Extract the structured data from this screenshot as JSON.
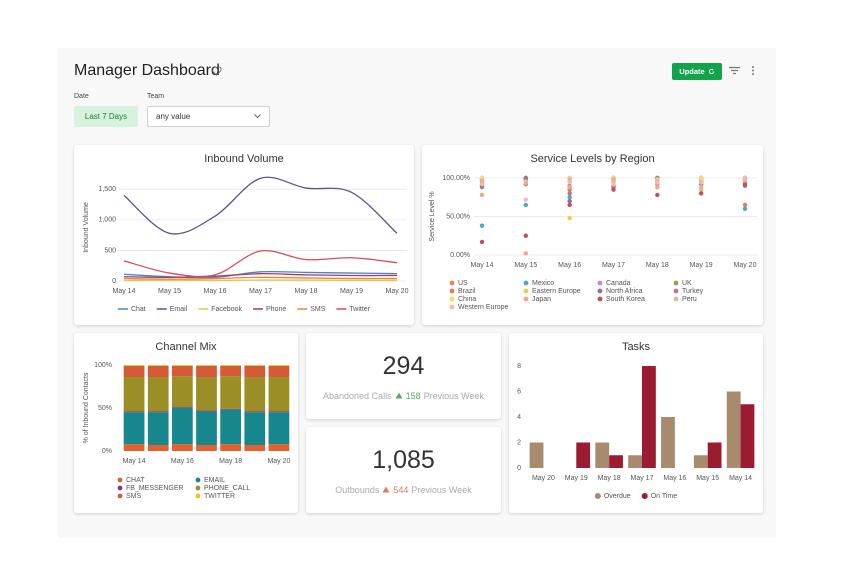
{
  "header": {
    "title": "Manager Dashboard",
    "update_button": "Update"
  },
  "filters": [
    {
      "label": "Date",
      "value": "Last 7 Days"
    },
    {
      "label": "Team",
      "value": "any value"
    }
  ],
  "chart_data": [
    {
      "type": "line",
      "title": "Inbound Volume",
      "y_label": "Inbound Volume",
      "categories": [
        "May 14",
        "May 15",
        "May 16",
        "May 17",
        "May 18",
        "May 19",
        "May 20"
      ],
      "ylim": [
        0,
        1750
      ],
      "yticks": [
        0,
        500,
        {
          "value": 1000,
          "label": "1,000"
        },
        {
          "value": 1500,
          "label": "1,500"
        }
      ],
      "grid": true,
      "series": [
        {
          "name": "Chat",
          "color": "#4a86c5",
          "values": [
            110,
            70,
            60,
            150,
            140,
            130,
            120
          ]
        },
        {
          "name": "Email",
          "color": "#5c5494",
          "values": [
            1400,
            780,
            1060,
            1680,
            1520,
            1450,
            780
          ]
        },
        {
          "name": "Facebook",
          "color": "#f0c244",
          "values": [
            10,
            10,
            10,
            15,
            15,
            10,
            10
          ]
        },
        {
          "name": "Phone",
          "color": "#a33b6b",
          "values": [
            70,
            60,
            80,
            120,
            100,
            90,
            90
          ]
        },
        {
          "name": "SMS",
          "color": "#e8893a",
          "values": [
            40,
            30,
            40,
            60,
            50,
            40,
            40
          ]
        },
        {
          "name": "Twitter",
          "color": "#d94a5e",
          "values": [
            330,
            130,
            100,
            490,
            350,
            380,
            300
          ]
        }
      ]
    },
    {
      "type": "scatter",
      "title": "Service Levels by Region",
      "y_label": "Service Level %",
      "categories": [
        "May 14",
        "May 15",
        "May 16",
        "May 17",
        "May 18",
        "May 19",
        "May 20"
      ],
      "ylim": [
        0,
        100
      ],
      "yticks": [
        {
          "value": 0,
          "label": "0.00%"
        },
        {
          "value": 50,
          "label": "50.00%"
        },
        {
          "value": 100,
          "label": "100.00%"
        }
      ],
      "grid": true,
      "series": [
        {
          "name": "US",
          "color": "#e8864c",
          "values": [
            100,
            100,
            95,
            100,
            100,
            100,
            100
          ]
        },
        {
          "name": "Mexico",
          "color": "#4aa8c8",
          "values": [
            38,
            65,
            75,
            100,
            100,
            100,
            60
          ]
        },
        {
          "name": "Canada",
          "color": "#c98bb9",
          "values": [
            98,
            97,
            90,
            95,
            98,
            98,
            95
          ]
        },
        {
          "name": "UK",
          "color": "#a09a4a",
          "values": [
            95,
            100,
            100,
            98,
            95,
            95,
            98
          ]
        },
        {
          "name": "Brazil",
          "color": "#e37c52",
          "values": [
            88,
            92,
            85,
            90,
            92,
            96,
            65
          ]
        },
        {
          "name": "Eastern Europe",
          "color": "#f3c94a",
          "values": [
            100,
            98,
            48,
            100,
            100,
            98,
            100
          ]
        },
        {
          "name": "North Africa",
          "color": "#8e6f9e",
          "values": [
            90,
            100,
            70,
            100,
            100,
            92,
            90
          ]
        },
        {
          "name": "Turkey",
          "color": "#b07a8a",
          "values": [
            98,
            98,
            80,
            88,
            100,
            100,
            100
          ]
        },
        {
          "name": "China",
          "color": "#f7d97a",
          "values": [
            100,
            95,
            100,
            100,
            98,
            100,
            95
          ]
        },
        {
          "name": "Japan",
          "color": "#f2a68a",
          "values": [
            78,
            2,
            88,
            98,
            88,
            85,
            100
          ]
        },
        {
          "name": "South Korea",
          "color": "#c44e5a",
          "values": [
            17,
            25,
            65,
            85,
            78,
            80,
            92
          ]
        },
        {
          "name": "Peru",
          "color": "#d9b89a",
          "values": [
            96,
            94,
            98,
            96,
            96,
            88,
            97
          ]
        },
        {
          "name": "Western Europe",
          "color": "#f0b8b8",
          "values": [
            92,
            72,
            95,
            92,
            94,
            94,
            100
          ]
        }
      ]
    },
    {
      "type": "stacked_bar",
      "title": "Channel Mix",
      "y_label": "% of Inbound Contacts",
      "categories": [
        "May 14",
        null,
        "May 16",
        null,
        "May 18",
        null,
        "May 20"
      ],
      "ylim": [
        0,
        100
      ],
      "yticks": [
        {
          "value": 0,
          "label": "0%"
        },
        {
          "value": 50,
          "label": "50%"
        },
        {
          "value": 100,
          "label": "100%"
        }
      ],
      "series": [
        {
          "name": "CHAT",
          "color": "#e0622f",
          "values": [
            8,
            7,
            8,
            7,
            8,
            7,
            8
          ]
        },
        {
          "name": "EMAIL",
          "color": "#17878e",
          "values": [
            37,
            38,
            42,
            39,
            40,
            38,
            37
          ]
        },
        {
          "name": "FB_MESSENGER",
          "color": "#7a3b8c",
          "values": [
            1,
            1,
            1,
            1,
            1,
            1,
            1
          ]
        },
        {
          "name": "PHONE_CALL",
          "color": "#9c8e26",
          "values": [
            40,
            40,
            36,
            39,
            38,
            40,
            40
          ]
        },
        {
          "name": "SMS",
          "color": "#d65a35",
          "values": [
            13,
            13,
            12,
            13,
            12,
            13,
            13
          ]
        },
        {
          "name": "TWITTER",
          "color": "#e9c22c",
          "values": [
            1,
            1,
            1,
            1,
            1,
            1,
            1
          ]
        }
      ]
    },
    {
      "type": "grouped_bar",
      "title": "Tasks",
      "categories": [
        "May 20",
        "May 19",
        "May 18",
        "May 17",
        "May 16",
        "May 15",
        "May 14"
      ],
      "ylim": [
        0,
        8
      ],
      "yticks": [
        0,
        2,
        4,
        6,
        8
      ],
      "series": [
        {
          "name": "Overdue",
          "color": "#a88b6f",
          "values": [
            2,
            0,
            2,
            1,
            4,
            1,
            6
          ]
        },
        {
          "name": "On Time",
          "color": "#9b1b30",
          "values": [
            0,
            2,
            1,
            8,
            0,
            2,
            5
          ]
        }
      ]
    }
  ],
  "kpis": [
    {
      "value": 294,
      "label": "Abandoned Calls",
      "change": 158,
      "period": "Previous Week",
      "trend_color": "#5aa85a"
    },
    {
      "value": "1,085",
      "label": "Outbounds",
      "change": 544,
      "period": "Previous Week",
      "trend_color": "#d0806a"
    }
  ]
}
